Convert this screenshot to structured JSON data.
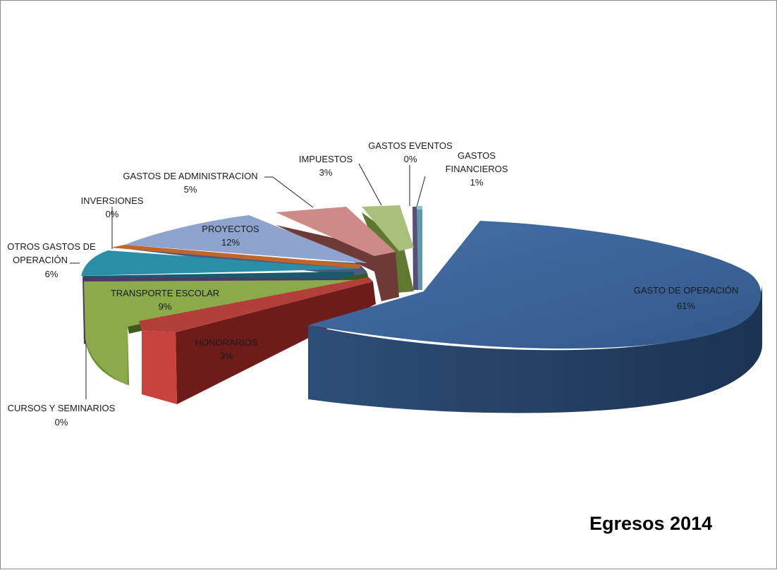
{
  "chart_data": {
    "type": "pie",
    "title": "Egresos 2014",
    "three_d": true,
    "exploded": true,
    "slices": [
      {
        "name": "GASTO DE OPERACIÓN",
        "pct_label": "61%",
        "value": 61,
        "color": "#3a6396"
      },
      {
        "name": "HONORARIOS",
        "pct_label": "3%",
        "value": 3,
        "color": "#b33f3a"
      },
      {
        "name": "TRANSPORTE ESCOLAR",
        "pct_label": "9%",
        "value": 9,
        "color": "#8bab4a"
      },
      {
        "name": "CURSOS Y SEMINARIOS",
        "pct_label": "0%",
        "value": 0.3,
        "color": "#6a4e8a"
      },
      {
        "name": "OTROS GASTOS DE OPERACIÓN",
        "pct_label": "6%",
        "value": 6,
        "color": "#2a8fa6"
      },
      {
        "name": "INVERSIONES",
        "pct_label": "0%",
        "value": 0.4,
        "color": "#d8782a"
      },
      {
        "name": "PROYECTOS",
        "pct_label": "12%",
        "value": 12,
        "color": "#8ea4cf"
      },
      {
        "name": "GASTOS DE ADMINISTRACION",
        "pct_label": "5%",
        "value": 5,
        "color": "#cf8a88"
      },
      {
        "name": "IMPUESTOS",
        "pct_label": "3%",
        "value": 3,
        "color": "#a8c07c"
      },
      {
        "name": "GASTOS EVENTOS",
        "pct_label": "0%",
        "value": 0.4,
        "color": "#8878a6"
      },
      {
        "name": "GASTOS FINANCIEROS",
        "pct_label": "1%",
        "value": 1,
        "color": "#88c4d6"
      }
    ]
  }
}
